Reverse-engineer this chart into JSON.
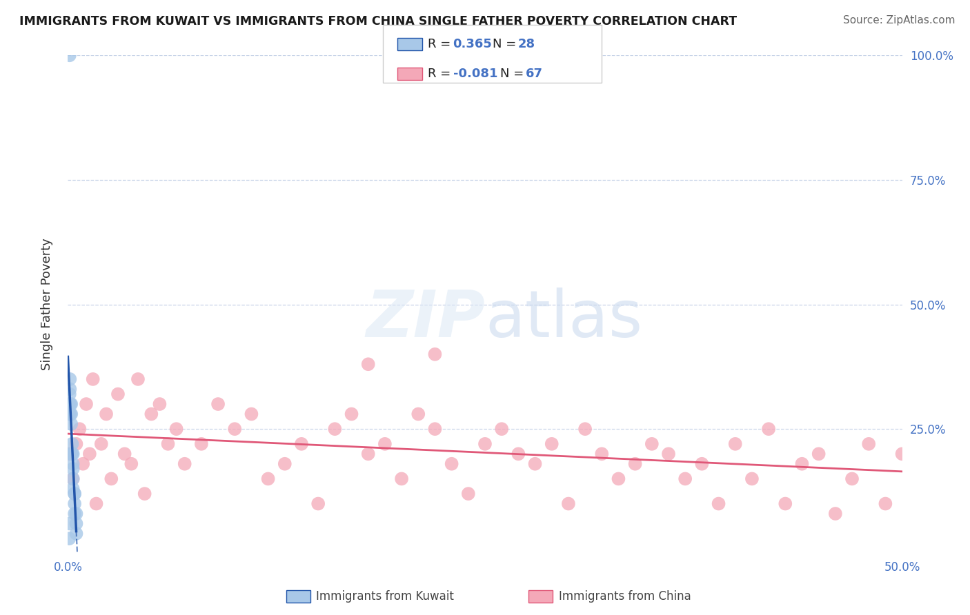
{
  "title": "IMMIGRANTS FROM KUWAIT VS IMMIGRANTS FROM CHINA SINGLE FATHER POVERTY CORRELATION CHART",
  "source": "Source: ZipAtlas.com",
  "ylabel": "Single Father Poverty",
  "color_kuwait": "#a8c8e8",
  "color_china": "#f4a8b8",
  "color_kuwait_line": "#2255aa",
  "color_china_line": "#e05878",
  "color_axis_label": "#4472c4",
  "color_grid": "#c8d4e8",
  "xlim": [
    0.0,
    0.5
  ],
  "ylim": [
    0.0,
    1.0
  ],
  "yticks": [
    0.25,
    0.5,
    0.75,
    1.0
  ],
  "ytick_labels": [
    "25.0%",
    "50.0%",
    "75.0%",
    "100.0%"
  ],
  "kuwait_x": [
    0.0008,
    0.0008,
    0.001,
    0.001,
    0.0012,
    0.0012,
    0.0012,
    0.0015,
    0.0015,
    0.002,
    0.002,
    0.002,
    0.002,
    0.0025,
    0.0025,
    0.003,
    0.003,
    0.003,
    0.003,
    0.003,
    0.004,
    0.004,
    0.004,
    0.004,
    0.005,
    0.005,
    0.005,
    0.001
  ],
  "kuwait_y": [
    0.03,
    0.06,
    0.28,
    0.32,
    0.3,
    0.33,
    0.35,
    0.28,
    0.3,
    0.26,
    0.28,
    0.3,
    0.2,
    0.2,
    0.22,
    0.18,
    0.2,
    0.17,
    0.15,
    0.13,
    0.12,
    0.1,
    0.12,
    0.08,
    0.06,
    0.08,
    0.04,
    1.0
  ],
  "china_x": [
    0.001,
    0.003,
    0.005,
    0.007,
    0.009,
    0.011,
    0.013,
    0.015,
    0.017,
    0.02,
    0.023,
    0.026,
    0.03,
    0.034,
    0.038,
    0.042,
    0.046,
    0.05,
    0.055,
    0.06,
    0.065,
    0.07,
    0.08,
    0.09,
    0.1,
    0.11,
    0.12,
    0.13,
    0.14,
    0.15,
    0.16,
    0.17,
    0.18,
    0.19,
    0.2,
    0.21,
    0.22,
    0.23,
    0.24,
    0.25,
    0.26,
    0.27,
    0.28,
    0.29,
    0.3,
    0.31,
    0.32,
    0.33,
    0.34,
    0.35,
    0.36,
    0.37,
    0.38,
    0.39,
    0.4,
    0.41,
    0.42,
    0.43,
    0.44,
    0.45,
    0.46,
    0.47,
    0.48,
    0.49,
    0.5,
    0.18,
    0.22
  ],
  "china_y": [
    0.2,
    0.15,
    0.22,
    0.25,
    0.18,
    0.3,
    0.2,
    0.35,
    0.1,
    0.22,
    0.28,
    0.15,
    0.32,
    0.2,
    0.18,
    0.35,
    0.12,
    0.28,
    0.3,
    0.22,
    0.25,
    0.18,
    0.22,
    0.3,
    0.25,
    0.28,
    0.15,
    0.18,
    0.22,
    0.1,
    0.25,
    0.28,
    0.2,
    0.22,
    0.15,
    0.28,
    0.25,
    0.18,
    0.12,
    0.22,
    0.25,
    0.2,
    0.18,
    0.22,
    0.1,
    0.25,
    0.2,
    0.15,
    0.18,
    0.22,
    0.2,
    0.15,
    0.18,
    0.1,
    0.22,
    0.15,
    0.25,
    0.1,
    0.18,
    0.2,
    0.08,
    0.15,
    0.22,
    0.1,
    0.2,
    0.38,
    0.4
  ],
  "kuwait_trendline_x0": 0.0,
  "kuwait_trendline_x1": 0.005,
  "kuwait_trendline_xdash0": 0.005,
  "kuwait_trendline_xdash1": 0.13,
  "china_trendline_x0": 0.0,
  "china_trendline_x1": 0.5
}
